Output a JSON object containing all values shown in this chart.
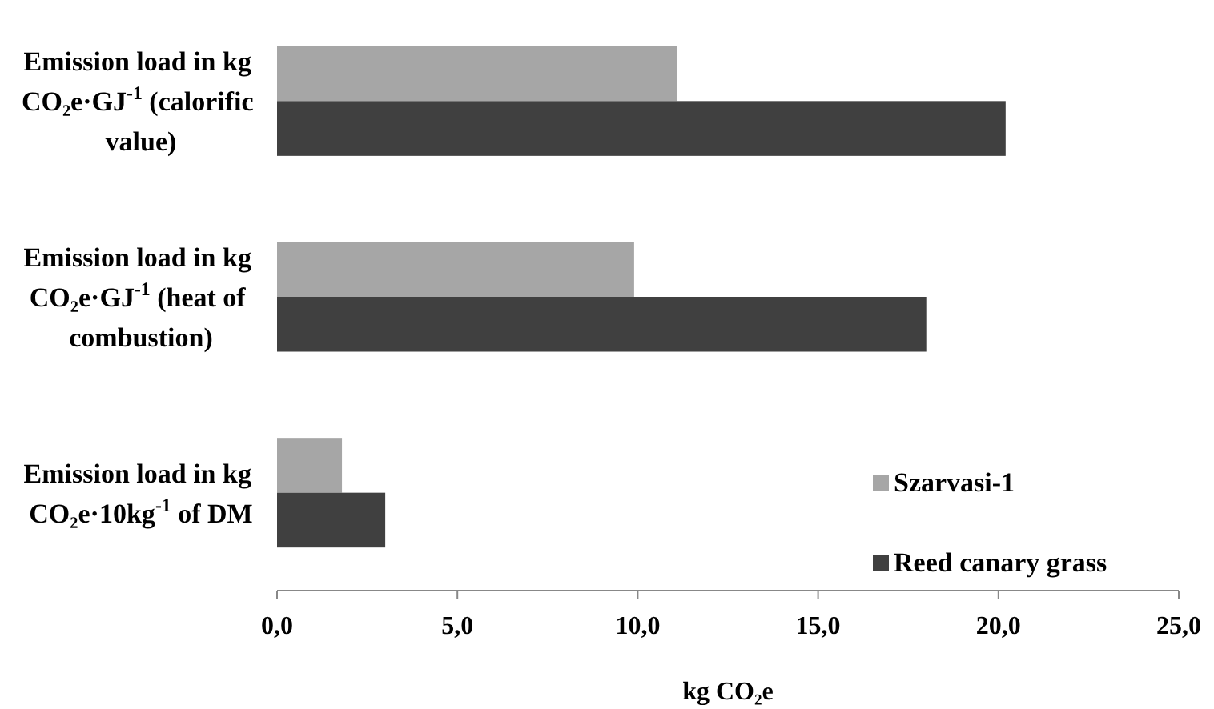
{
  "chart_data": {
    "type": "bar",
    "orientation": "horizontal",
    "xlabel": "kg CO₂e",
    "categories": [
      "Emission load in kg CO₂e·GJ$^{-1}$ (calorific value)",
      "Emission load in kg CO₂e·GJ$^{-1}$ (heat of combustion)",
      "Emission load in kg CO₂e·10kg$^{-1}$ of DM"
    ],
    "series": [
      {
        "name": "Szarvasi-1",
        "color": "#a6a6a6",
        "values": [
          11.1,
          9.9,
          1.8
        ]
      },
      {
        "name": "Reed canary grass",
        "color": "#404040",
        "values": [
          20.2,
          18.0,
          3.0
        ]
      }
    ],
    "xlim": [
      0,
      25
    ],
    "xticks": [
      {
        "value": 0,
        "label": "0,0"
      },
      {
        "value": 5,
        "label": "5,0"
      },
      {
        "value": 10,
        "label": "10,0"
      },
      {
        "value": 15,
        "label": "15,0"
      },
      {
        "value": 20,
        "label": "20,0"
      },
      {
        "value": 25,
        "label": "25,0"
      }
    ],
    "grid": false,
    "legend": "bottom right"
  }
}
